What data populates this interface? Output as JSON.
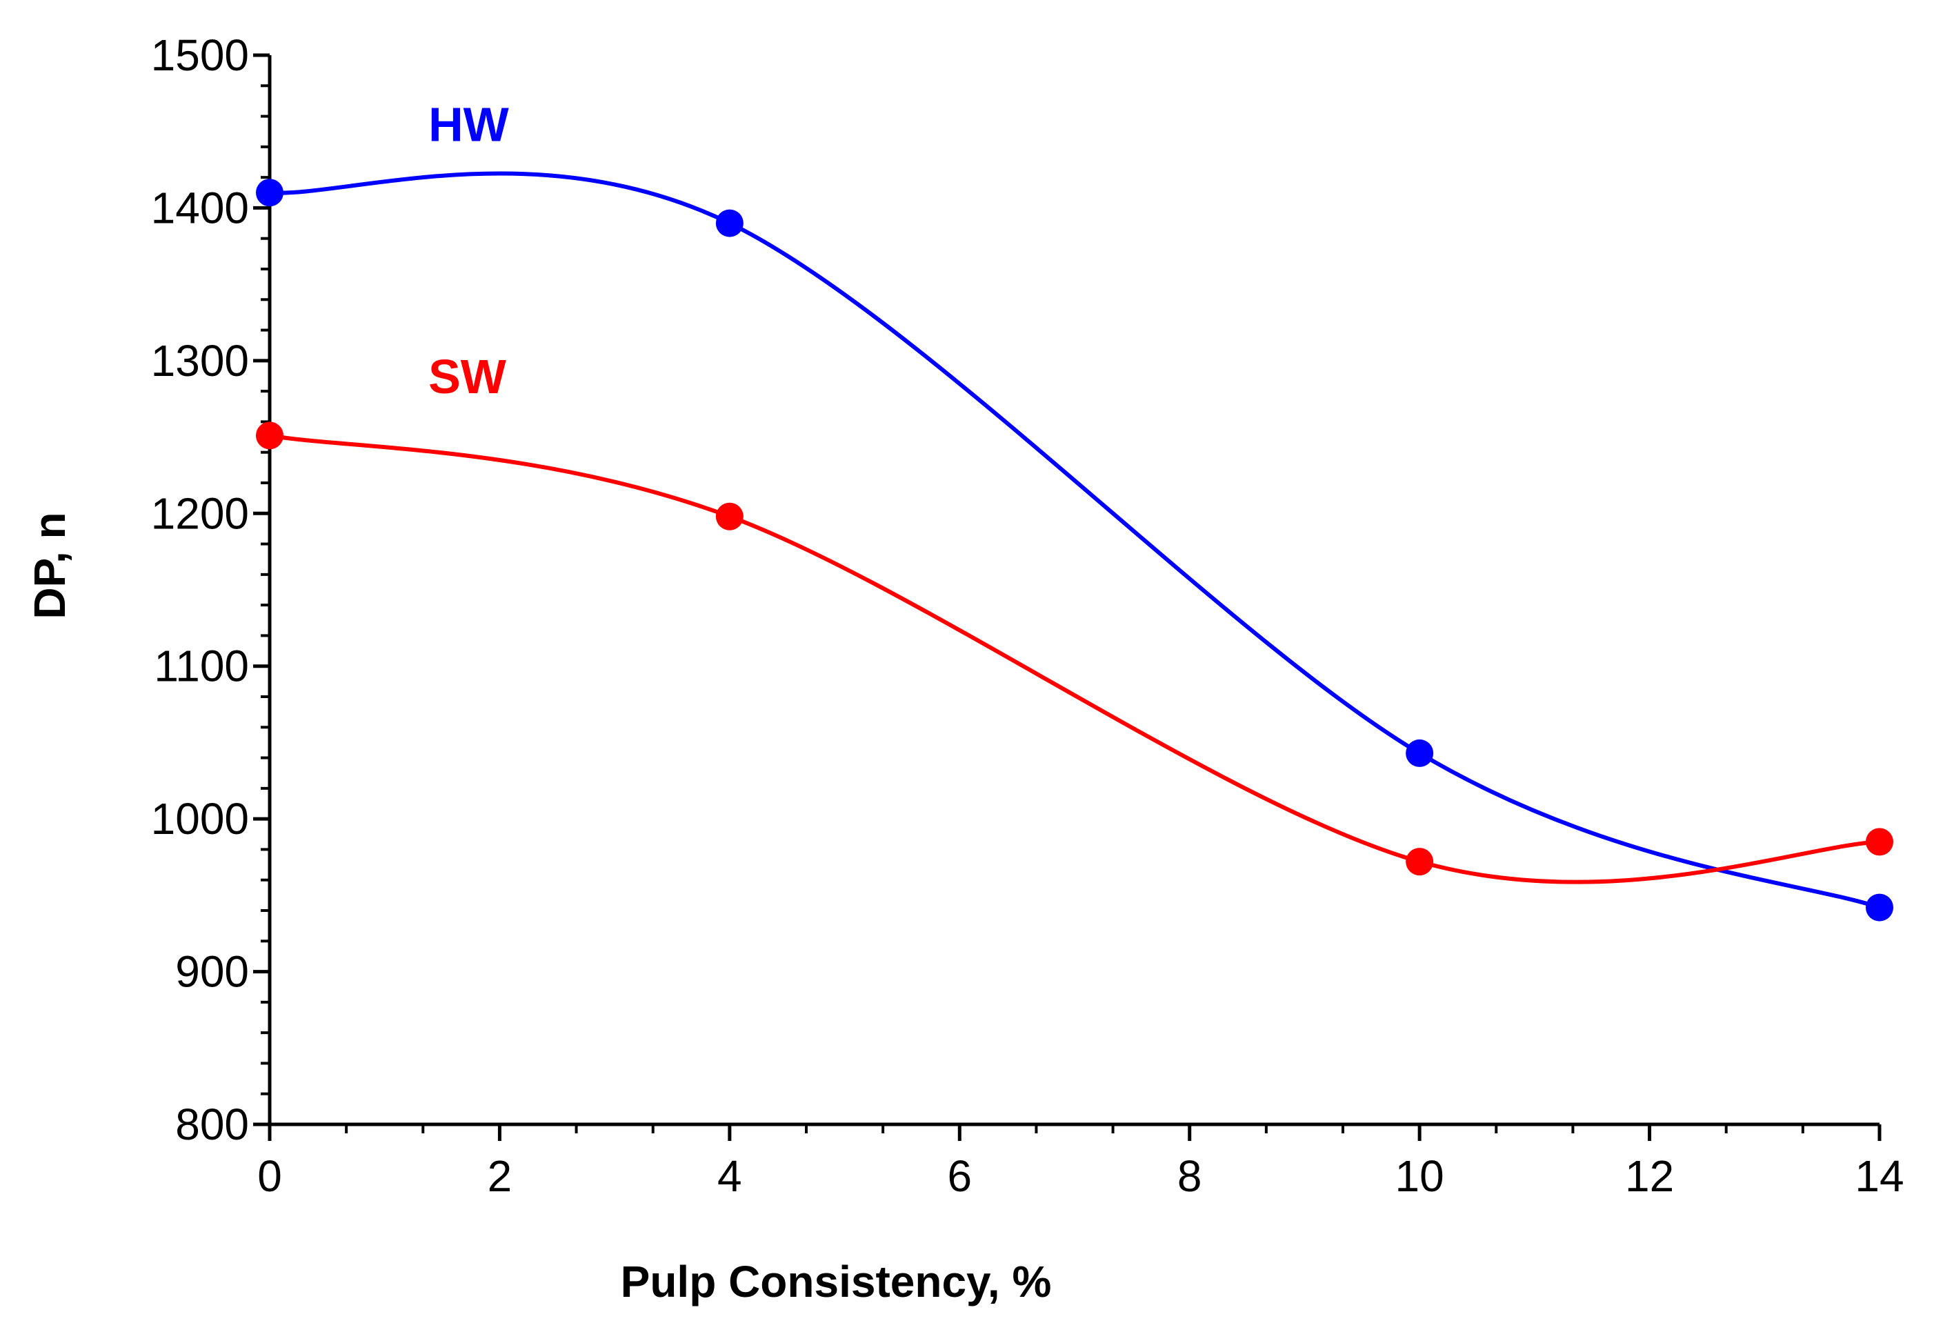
{
  "chart_data": {
    "type": "line",
    "title": "",
    "xlabel": "Pulp Consistency, %",
    "ylabel": "DP, n",
    "xlim": [
      0,
      14
    ],
    "ylim": [
      800,
      1500
    ],
    "x_ticks": [
      0,
      2,
      4,
      6,
      8,
      10,
      12,
      14
    ],
    "y_ticks": [
      800,
      900,
      1000,
      1100,
      1200,
      1300,
      1400,
      1500
    ],
    "grid": false,
    "smooth": true,
    "series": [
      {
        "name": "HW",
        "color": "#0000ff",
        "label_position": [
          1.8,
          1455
        ],
        "x": [
          0,
          4,
          10,
          14
        ],
        "values": [
          1410,
          1390,
          1043,
          942
        ]
      },
      {
        "name": "SW",
        "color": "#ff0000",
        "label_position": [
          1.8,
          1290
        ],
        "x": [
          0,
          4,
          10,
          14
        ],
        "values": [
          1251,
          1198,
          972,
          985
        ]
      }
    ]
  }
}
